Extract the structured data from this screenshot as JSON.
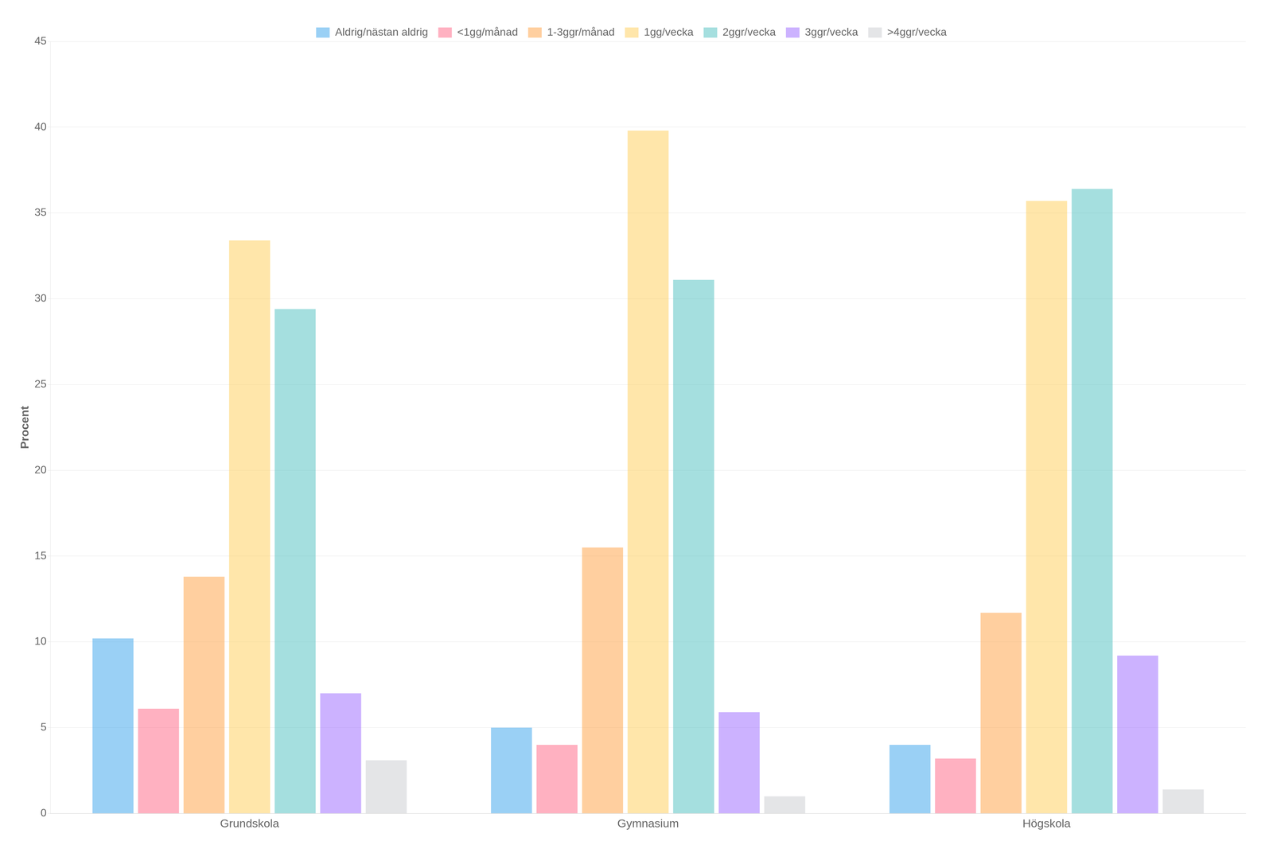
{
  "chart_data": {
    "type": "bar",
    "ylabel": "Procent",
    "categories": [
      "Grundskola",
      "Gymnasium",
      "Högskola"
    ],
    "series": [
      {
        "name": "Aldrig/nästan aldrig",
        "values": [
          10.2,
          5.0,
          4.0
        ]
      },
      {
        "name": "<1gg/månad",
        "values": [
          6.1,
          4.0,
          3.2
        ]
      },
      {
        "name": "1-3ggr/månad",
        "values": [
          13.8,
          15.5,
          11.7
        ]
      },
      {
        "name": "1gg/vecka",
        "values": [
          33.4,
          39.8,
          35.7
        ]
      },
      {
        "name": "2ggr/vecka",
        "values": [
          29.4,
          31.1,
          36.4
        ]
      },
      {
        "name": "3ggr/vecka",
        "values": [
          7.0,
          5.9,
          9.2
        ]
      },
      {
        "name": ">4ggr/vecka",
        "values": [
          3.1,
          1.0,
          1.4
        ]
      }
    ],
    "ylim": [
      0,
      45
    ],
    "yticks": [
      0,
      5,
      10,
      15,
      20,
      25,
      30,
      35,
      40,
      45
    ],
    "grid": true,
    "legend": "top"
  }
}
